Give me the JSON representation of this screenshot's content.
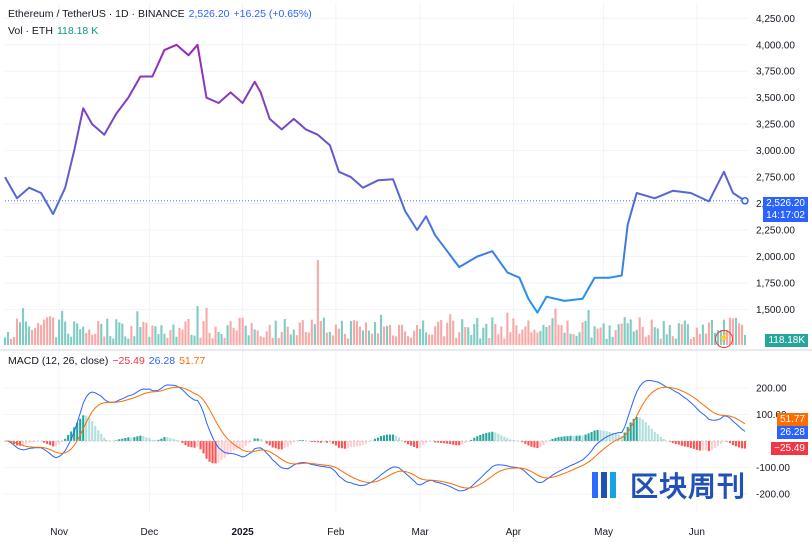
{
  "header": {
    "symbol": "Ethereum / TetherUS · 1D · BINANCE",
    "last": "2,526.20",
    "change": "+16.25 (+0.65%)",
    "vol_label": "Vol · ETH",
    "vol_value": "118.18 K",
    "macd_label": "MACD (12, 26, close)",
    "macd_hist": "−25.49",
    "macd_line": "26.28",
    "macd_signal": "51.77"
  },
  "price_tags": {
    "last": "2,526.20",
    "countdown": "14:17:02",
    "volume": "118.18K",
    "signal": "51.77",
    "macd": "26.28",
    "hist": "−25.49"
  },
  "price_axis": [
    "4,250.00",
    "4,000.00",
    "3,750.00",
    "3,500.00",
    "3,250.00",
    "3,000.00",
    "2,750.00",
    "2,500.00",
    "2,250.00",
    "2,000.00",
    "1,750.00",
    "1,500.00"
  ],
  "macd_axis": [
    "200.00",
    "100.00",
    "-100.00",
    "-200.00"
  ],
  "time_axis": [
    "Nov",
    "Dec",
    "2025",
    "Feb",
    "Mar",
    "Apr",
    "May",
    "Jun"
  ],
  "watermark": "区块周刊",
  "colors": {
    "line_top": "#9c27b0",
    "line_bottom": "#2196f3",
    "up": "#089981",
    "down": "#f23645",
    "macd": "#2962ff",
    "signal": "#ff6d00"
  },
  "chart_data": {
    "type": "line",
    "x": [
      "2024-10-14",
      "2024-10-18",
      "2024-10-22",
      "2024-10-26",
      "2024-10-30",
      "2024-11-03",
      "2024-11-06",
      "2024-11-09",
      "2024-11-12",
      "2024-11-16",
      "2024-11-20",
      "2024-11-24",
      "2024-11-28",
      "2024-12-02",
      "2024-12-06",
      "2024-12-10",
      "2024-12-14",
      "2024-12-17",
      "2024-12-20",
      "2024-12-24",
      "2024-12-28",
      "2025-01-01",
      "2025-01-05",
      "2025-01-07",
      "2025-01-10",
      "2025-01-14",
      "2025-01-18",
      "2025-01-22",
      "2025-01-26",
      "2025-01-30",
      "2025-02-02",
      "2025-02-06",
      "2025-02-10",
      "2025-02-15",
      "2025-02-20",
      "2025-02-24",
      "2025-02-28",
      "2025-03-03",
      "2025-03-06",
      "2025-03-10",
      "2025-03-14",
      "2025-03-20",
      "2025-03-25",
      "2025-03-30",
      "2025-04-03",
      "2025-04-06",
      "2025-04-09",
      "2025-04-12",
      "2025-04-18",
      "2025-04-24",
      "2025-04-28",
      "2025-05-03",
      "2025-05-07",
      "2025-05-09",
      "2025-05-12",
      "2025-05-18",
      "2025-05-24",
      "2025-05-30",
      "2025-06-05",
      "2025-06-10",
      "2025-06-13",
      "2025-06-17"
    ],
    "series": [
      {
        "values": [
          2750,
          2550,
          2650,
          2600,
          2400,
          2650,
          3000,
          3400,
          3250,
          3150,
          3350,
          3500,
          3700,
          3700,
          3950,
          4000,
          3900,
          4000,
          3500,
          3450,
          3550,
          3450,
          3650,
          3550,
          3300,
          3200,
          3300,
          3200,
          3150,
          3050,
          2800,
          2750,
          2650,
          2720,
          2730,
          2430,
          2250,
          2380,
          2200,
          2050,
          1900,
          2000,
          2050,
          1850,
          1800,
          1600,
          1470,
          1620,
          1580,
          1600,
          1800,
          1800,
          1820,
          2300,
          2600,
          2550,
          2620,
          2600,
          2520,
          2800,
          2600,
          2526
        ]
      }
    ],
    "volume_max_label": "118.18 K",
    "macd": {
      "macd_last": 26.28,
      "signal_last": 51.77,
      "hist_last": -25.49,
      "ylim": [
        -230,
        230
      ]
    },
    "ylim": [
      1400,
      4300
    ],
    "ylabel": "",
    "xlabel": "",
    "grid": true
  }
}
